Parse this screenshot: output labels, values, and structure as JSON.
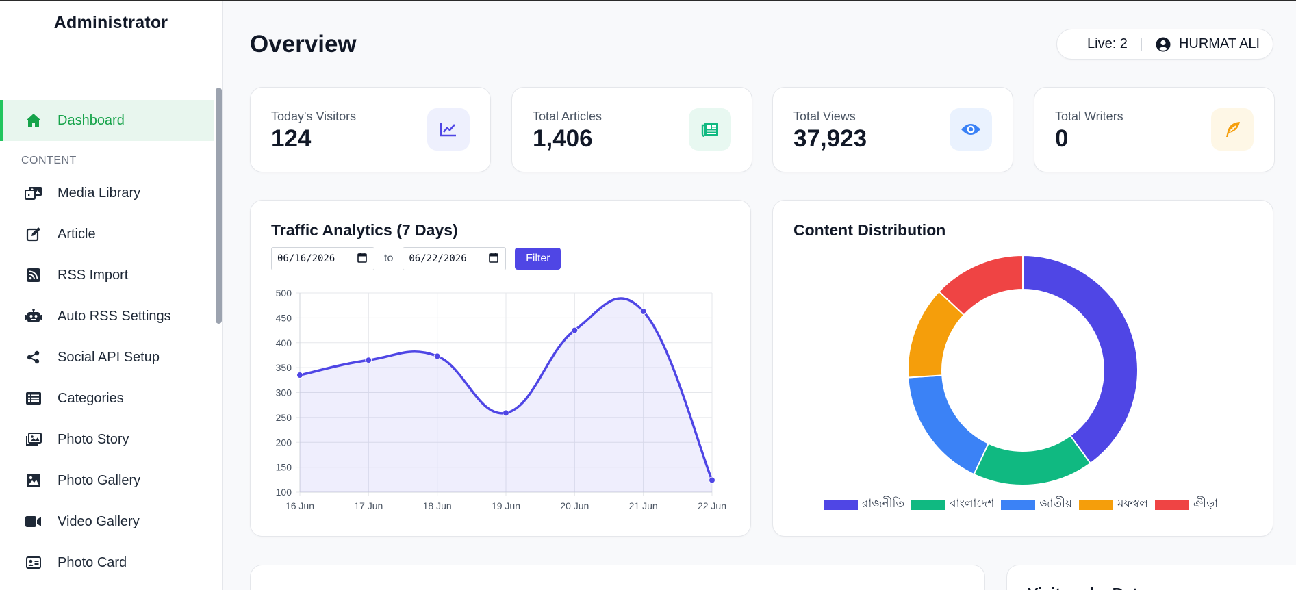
{
  "sidebar": {
    "brand": "Administrator",
    "items": [
      {
        "label": "Dashboard",
        "icon": "home-icon",
        "active": true
      },
      {
        "section": "CONTENT"
      },
      {
        "label": "Media Library",
        "icon": "photo-video-icon"
      },
      {
        "label": "Article",
        "icon": "edit-icon"
      },
      {
        "label": "RSS Import",
        "icon": "rss-icon"
      },
      {
        "label": "Auto RSS Settings",
        "icon": "robot-icon"
      },
      {
        "label": "Social API Setup",
        "icon": "share-icon"
      },
      {
        "label": "Categories",
        "icon": "list-icon"
      },
      {
        "label": "Photo Story",
        "icon": "images-icon"
      },
      {
        "label": "Photo Gallery",
        "icon": "image-icon"
      },
      {
        "label": "Video Gallery",
        "icon": "video-icon"
      },
      {
        "label": "Photo Card",
        "icon": "id-card-icon"
      }
    ]
  },
  "header": {
    "title": "Overview",
    "live": "Live: 2",
    "user": "HURMAT ALI"
  },
  "stats": [
    {
      "label": "Today's Visitors",
      "value": "124",
      "icon": "chart-line-icon",
      "color": "#4f46e5",
      "bg": "#eef0fd"
    },
    {
      "label": "Total Articles",
      "value": "1,406",
      "icon": "newspaper-icon",
      "color": "#10b981",
      "bg": "#e8f8f1"
    },
    {
      "label": "Total Views",
      "value": "37,923",
      "icon": "eye-icon",
      "color": "#3b82f6",
      "bg": "#eaf2fe"
    },
    {
      "label": "Total Writers",
      "value": "0",
      "icon": "feather-icon",
      "color": "#f59e0b",
      "bg": "#fef7e6"
    }
  ],
  "traffic": {
    "title": "Traffic Analytics (7 Days)",
    "from": "06/16/2026",
    "to_label": "to",
    "to": "06/22/2026",
    "filter": "Filter"
  },
  "distribution": {
    "title": "Content Distribution"
  },
  "bottom": {
    "right_title": "Visitors by Date"
  },
  "chart_data": [
    {
      "type": "area",
      "categories": [
        "16 Jun",
        "17 Jun",
        "18 Jun",
        "19 Jun",
        "20 Jun",
        "21 Jun",
        "22 Jun"
      ],
      "values": [
        335,
        365,
        373,
        259,
        425,
        463,
        124
      ],
      "ylim": [
        100,
        500
      ],
      "yticks": [
        100,
        150,
        200,
        250,
        300,
        350,
        400,
        450,
        500
      ],
      "grid": true,
      "color": "#4f46e5"
    },
    {
      "type": "pie",
      "labels": [
        "রাজনীতি",
        "বাংলাদেশ",
        "জাতীয়",
        "মফস্বল",
        "ক্রীড়া"
      ],
      "values": [
        40,
        17,
        17,
        13,
        13
      ],
      "colors": [
        "#4f46e5",
        "#10b981",
        "#3b82f6",
        "#f59e0b",
        "#ef4444"
      ],
      "legend": "bottom"
    }
  ]
}
